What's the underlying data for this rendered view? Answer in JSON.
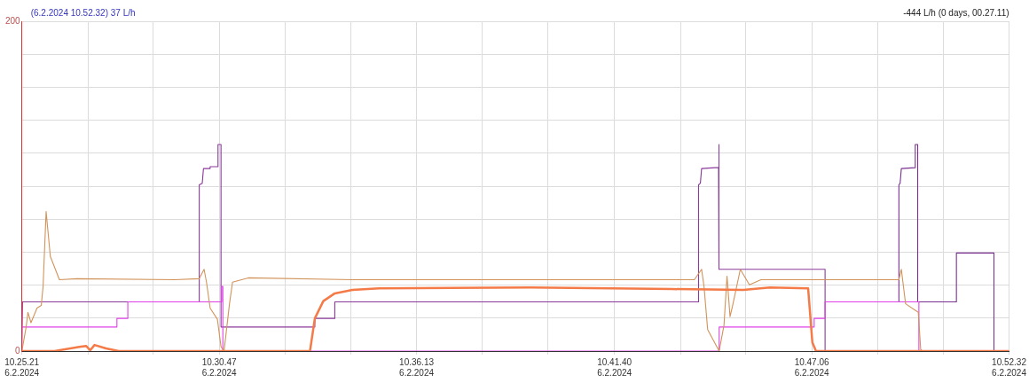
{
  "chart_data": {
    "type": "line",
    "annotations": [
      "(6.2.2024 10.52.32) 37 L/h",
      "-444 L/h (0 days, 00.27.11)"
    ],
    "xlim": [
      "2024-02-06T10:25:21",
      "2024-02-06T10:52:32"
    ],
    "xticks": [
      {
        "value": "2024-02-06T10:25:21",
        "label": "10.25.21\n6.2.2024"
      },
      {
        "value": "2024-02-06T10:27:10",
        "label": null
      },
      {
        "value": "2024-02-06T10:28:58",
        "label": null
      },
      {
        "value": "2024-02-06T10:30:47",
        "label": "10.30.47\n6.2.2024"
      },
      {
        "value": "2024-02-06T10:32:36",
        "label": null
      },
      {
        "value": "2024-02-06T10:34:24",
        "label": null
      },
      {
        "value": "2024-02-06T10:36:13",
        "label": "10.36.13\n6.2.2024"
      },
      {
        "value": "2024-02-06T10:38:02",
        "label": null
      },
      {
        "value": "2024-02-06T10:39:50",
        "label": null
      },
      {
        "value": "2024-02-06T10:41:40",
        "label": "10.41.40\n6.2.2024"
      },
      {
        "value": "2024-02-06T10:43:29",
        "label": null
      },
      {
        "value": "2024-02-06T10:45:17",
        "label": null
      },
      {
        "value": "2024-02-06T10:47:06",
        "label": "10.47.06\n6.2.2024"
      },
      {
        "value": "2024-02-06T10:48:55",
        "label": null
      },
      {
        "value": "2024-02-06T10:50:43",
        "label": null
      },
      {
        "value": "2024-02-06T10:52:32",
        "label": "10.52.32\n6.2.2024"
      }
    ],
    "ylim": [
      0,
      200
    ],
    "yticks": [
      0,
      {
        "value": 20,
        "label": null
      },
      {
        "value": 40,
        "label": null
      },
      {
        "value": 60,
        "label": null
      },
      {
        "value": 80,
        "label": null
      },
      {
        "value": 100,
        "label": null
      },
      {
        "value": 120,
        "label": null
      },
      {
        "value": 140,
        "label": null
      },
      {
        "value": 160,
        "label": null
      },
      {
        "value": 180,
        "label": null
      },
      200
    ],
    "grid": true,
    "legend": false,
    "marker": "none",
    "line_style": "solid",
    "series": [
      {
        "color": "#f47a48",
        "x": [
          "2024-02-06T10:25:21",
          "2024-02-06T10:26:15",
          "2024-02-06T10:26:56",
          "2024-02-06T10:27:07",
          "2024-02-06T10:27:14",
          "2024-02-06T10:27:21",
          "2024-02-06T10:27:40",
          "2024-02-06T10:28:01",
          "2024-02-06T10:33:17",
          "2024-02-06T10:33:25",
          "2024-02-06T10:33:39",
          "2024-02-06T10:33:58",
          "2024-02-06T10:34:27",
          "2024-02-06T10:35:11",
          "2024-02-06T10:39:21",
          "2024-02-06T10:43:15",
          "2024-02-06T10:45:13",
          "2024-02-06T10:45:57",
          "2024-02-06T10:47:00",
          "2024-02-06T10:47:07",
          "2024-02-06T10:47:13",
          "2024-02-06T10:52:32"
        ],
        "values": [
          0,
          0,
          2.6,
          3.1,
          0.5,
          3.7,
          1.6,
          0,
          0,
          19.8,
          30.3,
          35,
          37.1,
          38.1,
          38.6,
          37.6,
          37.1,
          38.6,
          38.1,
          5.2,
          0,
          0
        ]
      },
      {
        "color": "#d2935a",
        "x": [
          "2024-02-06T10:25:21",
          "2024-02-06T10:25:28",
          "2024-02-06T10:25:31",
          "2024-02-06T10:25:36",
          "2024-02-06T10:25:46",
          "2024-02-06T10:25:53",
          "2024-02-06T10:25:56",
          "2024-02-06T10:26:01",
          "2024-02-06T10:26:08",
          "2024-02-06T10:26:23",
          "2024-02-06T10:26:52",
          "2024-02-06T10:29:33",
          "2024-02-06T10:30:14",
          "2024-02-06T10:30:22",
          "2024-02-06T10:30:26",
          "2024-02-06T10:30:32",
          "2024-02-06T10:30:44",
          "2024-02-06T10:30:50",
          "2024-02-06T10:30:55",
          "2024-02-06T10:31:04",
          "2024-02-06T10:31:09",
          "2024-02-06T10:31:35",
          "2024-02-06T10:34:27",
          "2024-02-06T10:39:21",
          "2024-02-06T10:43:52",
          "2024-02-06T10:44:04",
          "2024-02-06T10:44:08",
          "2024-02-06T10:44:14",
          "2024-02-06T10:44:33",
          "2024-02-06T10:44:41",
          "2024-02-06T10:44:46",
          "2024-02-06T10:44:51",
          "2024-02-06T10:44:55",
          "2024-02-06T10:45:08",
          "2024-02-06T10:45:23",
          "2024-02-06T10:45:42",
          "2024-02-06T10:49:30",
          "2024-02-06T10:49:34",
          "2024-02-06T10:49:41",
          "2024-02-06T10:50:02",
          "2024-02-06T10:50:06",
          "2024-02-06T10:50:09",
          "2024-02-06T10:52:32"
        ],
        "values": [
          0,
          14.6,
          23.5,
          17.2,
          26.1,
          27.7,
          39.2,
          84.6,
          57.4,
          43.3,
          43.9,
          43.3,
          43.9,
          49.6,
          41.8,
          26.1,
          19.3,
          2.6,
          0,
          28.7,
          41.8,
          44.4,
          43.3,
          43.3,
          43.3,
          49.6,
          39.2,
          13.1,
          0,
          15.7,
          45.4,
          20.9,
          27.2,
          49.6,
          40.2,
          43.3,
          43.3,
          49.6,
          28.7,
          23.5,
          1,
          0,
          0
        ]
      },
      {
        "color": "#e040e8",
        "x": [
          "2024-02-06T10:25:21",
          "2024-02-06T10:27:58",
          "2024-02-06T10:27:58",
          "2024-02-06T10:28:16",
          "2024-02-06T10:28:16",
          "2024-02-06T10:30:51",
          "2024-02-06T10:30:51",
          "2024-02-06T10:30:53",
          "2024-02-06T10:30:53",
          "2024-02-06T10:44:33",
          "2024-02-06T10:44:33",
          "2024-02-06T10:47:10",
          "2024-02-06T10:47:10",
          "2024-02-06T10:47:28",
          "2024-02-06T10:47:28",
          "2024-02-06T10:50:03",
          "2024-02-06T10:50:03",
          "2024-02-06T10:52:32"
        ],
        "values": [
          14.6,
          14.6,
          19.8,
          19.8,
          29.8,
          29.8,
          39.2,
          39.2,
          0,
          0,
          14.6,
          14.6,
          19.8,
          19.8,
          29.8,
          29.8,
          0,
          0
        ]
      },
      {
        "color": "#8a3a9a",
        "x": [
          "2024-02-06T10:25:21",
          "2024-02-06T10:25:22",
          "2024-02-06T10:30:14",
          "2024-02-06T10:30:14",
          "2024-02-06T10:30:19",
          "2024-02-06T10:30:21",
          "2024-02-06T10:30:32",
          "2024-02-06T10:30:32",
          "2024-02-06T10:30:45",
          "2024-02-06T10:30:45",
          "2024-02-06T10:30:50",
          "2024-02-06T10:30:50",
          "2024-02-06T10:33:25",
          "2024-02-06T10:33:25",
          "2024-02-06T10:33:58",
          "2024-02-06T10:33:58",
          "2024-02-06T10:43:59",
          "2024-02-06T10:43:59",
          "2024-02-06T10:44:02",
          "2024-02-06T10:44:04",
          "2024-02-06T10:44:26",
          "2024-02-06T10:44:32",
          "2024-02-06T10:44:32",
          "2024-02-06T10:44:33",
          "2024-02-06T10:44:33",
          "2024-02-06T10:47:28",
          "2024-02-06T10:47:28"
        ],
        "values": [
          0,
          29.8,
          29.8,
          100.8,
          101.8,
          110.7,
          110.7,
          111.8,
          111.8,
          125.3,
          125.3,
          14.6,
          14.6,
          19.8,
          19.8,
          29.8,
          29.8,
          100.8,
          101.8,
          110.7,
          111.2,
          111.2,
          125.3,
          125.3,
          49.6,
          49.6,
          0
        ]
      },
      {
        "color": "#7a3090",
        "x": [
          "2024-02-06T10:47:28",
          "2024-02-06T10:49:30",
          "2024-02-06T10:49:30",
          "2024-02-06T10:49:32",
          "2024-02-06T10:49:34",
          "2024-02-06T10:49:57",
          "2024-02-06T10:49:57",
          "2024-02-06T10:50:01",
          "2024-02-06T10:50:01",
          "2024-02-06T10:51:05",
          "2024-02-06T10:51:05",
          "2024-02-06T10:52:07",
          "2024-02-06T10:52:07",
          "2024-02-06T10:52:32"
        ],
        "values": [
          29.8,
          29.8,
          100.8,
          101.8,
          110.7,
          111.2,
          125.3,
          125.3,
          29.8,
          29.8,
          59.5,
          59.5,
          0,
          0
        ]
      }
    ]
  }
}
